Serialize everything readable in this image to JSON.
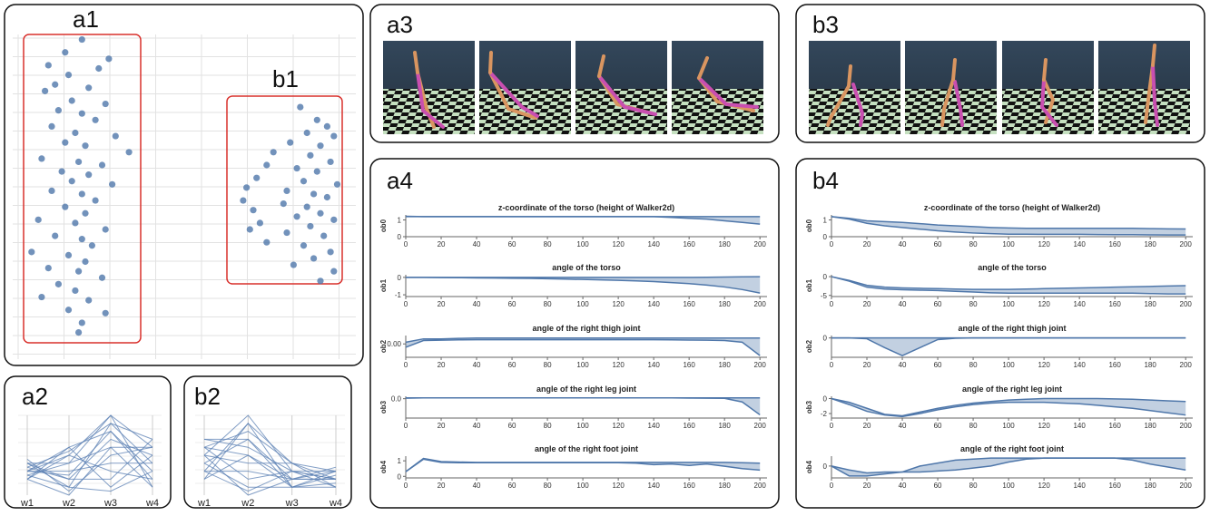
{
  "panel_labels": {
    "a1": "a1",
    "b1": "b1",
    "a2": "a2",
    "b2": "b2",
    "a3": "a3",
    "b3": "b3",
    "a4": "a4",
    "b4": "b4"
  },
  "chart_data": [
    {
      "type": "scatter",
      "color": "#4f77aa",
      "xlim": [
        0,
        100
      ],
      "ylim": [
        0,
        100
      ],
      "x": [
        19,
        14,
        27,
        9,
        24,
        15,
        11,
        21,
        8,
        16,
        26,
        12,
        19,
        23,
        10,
        17,
        29,
        14,
        20,
        33,
        7,
        18,
        25,
        13,
        21,
        16,
        28,
        10,
        19,
        23,
        14,
        20,
        6,
        17,
        26,
        11,
        19,
        22,
        4,
        15,
        20,
        9,
        18,
        25,
        12,
        17,
        7,
        21,
        15,
        26,
        19,
        18,
        84,
        89,
        92,
        86,
        94,
        81,
        90,
        76,
        87,
        93,
        74,
        83,
        89,
        71,
        85,
        95,
        68,
        80,
        88,
        92,
        67,
        79,
        86,
        70,
        90,
        83,
        94,
        72,
        87,
        69,
        80,
        91,
        74,
        85,
        93,
        88,
        82,
        94,
        90
      ],
      "y": [
        99,
        95,
        93,
        91,
        90,
        88,
        85,
        84,
        83,
        80,
        79,
        77,
        76,
        74,
        72,
        70,
        69,
        67,
        66,
        64,
        62,
        61,
        60,
        58,
        57,
        55,
        54,
        52,
        51,
        49,
        47,
        45,
        43,
        42,
        40,
        38,
        37,
        35,
        33,
        32,
        30,
        28,
        27,
        25,
        23,
        21,
        19,
        18,
        15,
        14,
        11,
        8,
        78,
        74,
        72,
        70,
        69,
        67,
        66,
        64,
        63,
        61,
        60,
        59,
        58,
        56,
        55,
        54,
        53,
        52,
        51,
        50,
        49,
        48,
        47,
        46,
        45,
        44,
        43,
        42,
        41,
        40,
        39,
        38,
        36,
        35,
        33,
        31,
        29,
        27,
        24
      ]
    },
    {
      "type": "parallel",
      "color": "#5a7fb3",
      "axes": [
        "w1",
        "w2",
        "w3",
        "w4"
      ],
      "ylim": [
        0,
        10
      ],
      "lines": [
        [
          3,
          5,
          10,
          6
        ],
        [
          4,
          1,
          9,
          7
        ],
        [
          2,
          6,
          8,
          3
        ],
        [
          3.5,
          2,
          7,
          5
        ],
        [
          2.5,
          4,
          6,
          1
        ],
        [
          4.5,
          0.5,
          5,
          6
        ],
        [
          3,
          3,
          4,
          4
        ],
        [
          2,
          5,
          3,
          2
        ],
        [
          4,
          2,
          2,
          7
        ],
        [
          3,
          6,
          1,
          5
        ],
        [
          2.5,
          1,
          0.5,
          3
        ],
        [
          4,
          4,
          10,
          1
        ],
        [
          3.5,
          5.5,
          9,
          4
        ],
        [
          2,
          0,
          6,
          6
        ],
        [
          3,
          2.5,
          8,
          2
        ]
      ]
    },
    {
      "type": "parallel",
      "color": "#5a7fb3",
      "axes": [
        "w1",
        "w2",
        "w3",
        "w4"
      ],
      "ylim": [
        0,
        10
      ],
      "lines": [
        [
          5,
          10,
          3,
          2
        ],
        [
          3,
          9,
          1,
          3
        ],
        [
          6,
          8,
          4,
          1
        ],
        [
          4,
          7,
          2,
          3.5
        ],
        [
          7,
          6,
          3,
          2
        ],
        [
          2,
          5,
          1,
          1.5
        ],
        [
          5,
          4,
          4,
          3
        ],
        [
          3,
          3,
          2,
          2
        ],
        [
          6,
          2,
          3,
          1
        ],
        [
          4,
          1,
          1,
          2.5
        ],
        [
          5,
          0,
          2,
          3
        ],
        [
          2,
          9,
          4,
          2
        ],
        [
          7,
          7,
          1,
          1
        ],
        [
          3,
          0.5,
          3,
          3
        ],
        [
          6,
          5,
          2,
          2
        ]
      ]
    },
    {
      "type": "band",
      "title": "z-coordinate of the torso (height of Walker2d)",
      "ylabel": "ob0",
      "color": "#4f77aa",
      "x": [
        0,
        10,
        20,
        30,
        40,
        50,
        60,
        70,
        80,
        90,
        100,
        110,
        120,
        130,
        140,
        150,
        160,
        170,
        180,
        190,
        200
      ],
      "xlim": [
        0,
        204
      ],
      "xticks": [
        0,
        20,
        40,
        60,
        80,
        100,
        120,
        140,
        160,
        180,
        200
      ],
      "ylim": [
        0,
        1.3
      ],
      "yticks": [
        0,
        1
      ],
      "upper": [
        1.22,
        1.2,
        1.2,
        1.2,
        1.2,
        1.2,
        1.2,
        1.2,
        1.2,
        1.2,
        1.2,
        1.2,
        1.2,
        1.2,
        1.2,
        1.2,
        1.2,
        1.2,
        1.2,
        1.2,
        1.2
      ],
      "lower": [
        1.2,
        1.2,
        1.2,
        1.2,
        1.2,
        1.2,
        1.2,
        1.2,
        1.2,
        1.2,
        1.2,
        1.2,
        1.2,
        1.2,
        1.2,
        1.15,
        1.1,
        1.05,
        0.95,
        0.85,
        0.75
      ]
    },
    {
      "type": "band",
      "title": "angle of the torso",
      "ylabel": "ob1",
      "color": "#4f77aa",
      "x": [
        0,
        10,
        20,
        30,
        40,
        50,
        60,
        70,
        80,
        90,
        100,
        110,
        120,
        130,
        140,
        150,
        160,
        170,
        180,
        190,
        200
      ],
      "xlim": [
        0,
        204
      ],
      "xticks": [
        0,
        20,
        40,
        60,
        80,
        100,
        120,
        140,
        160,
        180,
        200
      ],
      "ylim": [
        -1.1,
        0.15
      ],
      "yticks": [
        -1,
        0
      ],
      "upper": [
        0,
        0,
        0,
        0,
        0,
        0,
        0,
        0,
        0,
        0,
        0,
        0,
        0,
        0,
        0,
        0,
        0,
        0.01,
        0.02,
        0.03,
        0.04
      ],
      "lower": [
        0,
        0,
        -0.01,
        -0.02,
        -0.03,
        -0.04,
        -0.05,
        -0.06,
        -0.08,
        -0.1,
        -0.12,
        -0.14,
        -0.17,
        -0.2,
        -0.24,
        -0.3,
        -0.36,
        -0.44,
        -0.55,
        -0.7,
        -0.9
      ]
    },
    {
      "type": "band",
      "title": "angle of the right thigh joint",
      "ylabel": "ob2",
      "color": "#4f77aa",
      "x": [
        0,
        10,
        20,
        30,
        40,
        50,
        60,
        70,
        80,
        90,
        100,
        110,
        120,
        130,
        140,
        150,
        160,
        170,
        180,
        190,
        200
      ],
      "xlim": [
        0,
        204
      ],
      "xticks": [
        0,
        20,
        40,
        60,
        80,
        100,
        120,
        140,
        160,
        180,
        200
      ],
      "ylim": [
        -0.08,
        0.05
      ],
      "yticks": [
        {
          "value": 0,
          "label": "0.00"
        }
      ],
      "upper": [
        0.01,
        0.03,
        0.03,
        0.033,
        0.035,
        0.035,
        0.035,
        0.035,
        0.035,
        0.035,
        0.035,
        0.035,
        0.035,
        0.035,
        0.035,
        0.035,
        0.035,
        0.035,
        0.035,
        0.035,
        0.035
      ],
      "lower": [
        -0.02,
        0.02,
        0.022,
        0.024,
        0.025,
        0.025,
        0.025,
        0.025,
        0.025,
        0.025,
        0.025,
        0.025,
        0.025,
        0.025,
        0.025,
        0.024,
        0.023,
        0.022,
        0.02,
        0.01,
        -0.07
      ]
    },
    {
      "type": "band",
      "title": "angle of the right leg joint",
      "ylabel": "ob3",
      "color": "#4f77aa",
      "x": [
        0,
        10,
        20,
        30,
        40,
        50,
        60,
        70,
        80,
        90,
        100,
        110,
        120,
        130,
        140,
        150,
        160,
        170,
        180,
        190,
        200
      ],
      "xlim": [
        0,
        204
      ],
      "xticks": [
        0,
        20,
        40,
        60,
        80,
        100,
        120,
        140,
        160,
        180,
        200
      ],
      "ylim": [
        -1.2,
        0.15
      ],
      "yticks": [
        {
          "value": 0,
          "label": "0.0"
        }
      ],
      "upper": [
        0.05,
        0.05,
        0.05,
        0.05,
        0.05,
        0.05,
        0.05,
        0.05,
        0.05,
        0.05,
        0.05,
        0.05,
        0.05,
        0.05,
        0.05,
        0.05,
        0.05,
        0.05,
        0.05,
        0.05,
        0.05
      ],
      "lower": [
        0.03,
        0.05,
        0.05,
        0.05,
        0.05,
        0.05,
        0.05,
        0.05,
        0.05,
        0.05,
        0.05,
        0.05,
        0.05,
        0.05,
        0.05,
        0.05,
        0.04,
        0.03,
        0.02,
        -0.2,
        -1.0
      ]
    },
    {
      "type": "band",
      "title": "angle of the right foot joint",
      "ylabel": "ob4",
      "color": "#4f77aa",
      "x": [
        0,
        10,
        20,
        30,
        40,
        50,
        60,
        70,
        80,
        90,
        100,
        110,
        120,
        130,
        140,
        150,
        160,
        170,
        180,
        190,
        200
      ],
      "xlim": [
        0,
        204
      ],
      "xticks": [
        0,
        20,
        40,
        60,
        80,
        100,
        120,
        140,
        160,
        180,
        200
      ],
      "ylim": [
        -0.1,
        1.3
      ],
      "yticks": [
        0,
        1
      ],
      "upper": [
        0.3,
        1.15,
        0.95,
        0.92,
        0.9,
        0.9,
        0.9,
        0.9,
        0.9,
        0.9,
        0.9,
        0.9,
        0.9,
        0.9,
        0.9,
        0.9,
        0.9,
        0.9,
        0.9,
        0.88,
        0.85
      ],
      "lower": [
        0.3,
        1.1,
        0.9,
        0.88,
        0.88,
        0.88,
        0.88,
        0.88,
        0.88,
        0.88,
        0.88,
        0.88,
        0.88,
        0.85,
        0.75,
        0.8,
        0.7,
        0.8,
        0.65,
        0.5,
        0.4
      ]
    },
    {
      "type": "band",
      "title": "z-coordinate of the torso (height of Walker2d)",
      "ylabel": "ob0",
      "color": "#4f77aa",
      "x": [
        0,
        10,
        20,
        30,
        40,
        50,
        60,
        70,
        80,
        90,
        100,
        110,
        120,
        130,
        140,
        150,
        160,
        170,
        180,
        190,
        200
      ],
      "xlim": [
        0,
        204
      ],
      "xticks": [
        0,
        20,
        40,
        60,
        80,
        100,
        120,
        140,
        160,
        180,
        200
      ],
      "ylim": [
        0,
        1.3
      ],
      "yticks": [
        0,
        1
      ],
      "upper": [
        1.2,
        1.1,
        0.95,
        0.9,
        0.85,
        0.78,
        0.7,
        0.65,
        0.6,
        0.55,
        0.52,
        0.5,
        0.5,
        0.5,
        0.5,
        0.5,
        0.5,
        0.5,
        0.48,
        0.47,
        0.46
      ],
      "lower": [
        1.2,
        1.05,
        0.8,
        0.65,
        0.55,
        0.45,
        0.35,
        0.28,
        0.22,
        0.18,
        0.15,
        0.15,
        0.14,
        0.14,
        0.14,
        0.13,
        0.12,
        0.12,
        0.11,
        0.1,
        0.1
      ]
    },
    {
      "type": "band",
      "title": "angle of the torso",
      "ylabel": "ob1",
      "color": "#4f77aa",
      "x": [
        0,
        10,
        20,
        30,
        40,
        50,
        60,
        70,
        80,
        90,
        100,
        110,
        120,
        130,
        140,
        150,
        160,
        170,
        180,
        190,
        200
      ],
      "xlim": [
        0,
        204
      ],
      "xticks": [
        0,
        20,
        40,
        60,
        80,
        100,
        120,
        140,
        160,
        180,
        200
      ],
      "ylim": [
        -5.3,
        0.5
      ],
      "yticks": [
        -5,
        0
      ],
      "upper": [
        0,
        -1,
        -2.3,
        -2.8,
        -3,
        -3.1,
        -3.2,
        -3.3,
        -3.4,
        -3.4,
        -3.4,
        -3.3,
        -3.2,
        -3.1,
        -3,
        -2.9,
        -2.8,
        -2.7,
        -2.6,
        -2.5,
        -2.4
      ],
      "lower": [
        0,
        -1.2,
        -2.8,
        -3.3,
        -3.5,
        -3.6,
        -3.7,
        -3.9,
        -4.1,
        -4.3,
        -4.4,
        -4.4,
        -4.4,
        -4.4,
        -4.4,
        -4.4,
        -4.4,
        -4.4,
        -4.5,
        -4.6,
        -4.6
      ]
    },
    {
      "type": "band",
      "title": "angle of the right thigh joint",
      "ylabel": "ob2",
      "color": "#4f77aa",
      "x": [
        0,
        10,
        20,
        30,
        40,
        50,
        60,
        70,
        80,
        90,
        100,
        110,
        120,
        130,
        140,
        150,
        160,
        170,
        180,
        190,
        200
      ],
      "xlim": [
        0,
        204
      ],
      "xticks": [
        0,
        20,
        40,
        60,
        80,
        100,
        120,
        140,
        160,
        180,
        200
      ],
      "ylim": [
        -1.2,
        0.15
      ],
      "yticks": [
        0
      ],
      "upper": [
        0,
        0,
        0,
        0,
        0,
        0,
        0,
        0,
        0,
        0,
        0,
        0,
        0,
        0,
        0,
        0,
        0,
        0,
        0,
        0,
        0
      ],
      "lower": [
        0,
        0,
        -0.05,
        -0.6,
        -1.1,
        -0.6,
        -0.1,
        -0.02,
        0,
        0,
        0,
        0,
        0,
        0,
        0,
        0,
        0,
        0,
        0,
        0,
        0
      ]
    },
    {
      "type": "band",
      "title": "angle of the right leg joint",
      "ylabel": "ob3",
      "color": "#4f77aa",
      "x": [
        0,
        10,
        20,
        30,
        40,
        50,
        60,
        70,
        80,
        90,
        100,
        110,
        120,
        130,
        140,
        150,
        160,
        170,
        180,
        190,
        200
      ],
      "xlim": [
        0,
        204
      ],
      "xticks": [
        0,
        20,
        40,
        60,
        80,
        100,
        120,
        140,
        160,
        180,
        200
      ],
      "ylim": [
        -2.6,
        0.3
      ],
      "yticks": [
        0,
        -2
      ],
      "upper": [
        0,
        -0.5,
        -1.3,
        -2.1,
        -2.3,
        -1.8,
        -1.3,
        -0.9,
        -0.6,
        -0.4,
        -0.2,
        -0.1,
        0,
        0,
        0,
        0,
        -0.05,
        -0.1,
        -0.2,
        -0.3,
        -0.4
      ],
      "lower": [
        0,
        -0.8,
        -1.7,
        -2.2,
        -2.4,
        -2,
        -1.5,
        -1.1,
        -0.8,
        -0.6,
        -0.5,
        -0.5,
        -0.5,
        -0.6,
        -0.7,
        -0.9,
        -1.1,
        -1.3,
        -1.6,
        -1.9,
        -2.2
      ]
    },
    {
      "type": "band",
      "title": "angle of the right foot joint",
      "ylabel": "ob4",
      "color": "#4f77aa",
      "x": [
        0,
        10,
        20,
        30,
        40,
        50,
        60,
        70,
        80,
        90,
        100,
        110,
        120,
        130,
        140,
        150,
        160,
        170,
        180,
        190,
        200
      ],
      "xlim": [
        0,
        204
      ],
      "xticks": [
        0,
        20,
        40,
        60,
        80,
        100,
        120,
        140,
        160,
        180,
        200
      ],
      "ylim": [
        -0.6,
        0.5
      ],
      "yticks": [
        0
      ],
      "upper": [
        0,
        -0.2,
        -0.35,
        -0.3,
        -0.3,
        0,
        0.15,
        0.3,
        0.35,
        0.4,
        0.4,
        0.4,
        0.4,
        0.4,
        0.4,
        0.4,
        0.4,
        0.4,
        0.4,
        0.4,
        0.4
      ],
      "lower": [
        0,
        -0.5,
        -0.5,
        -0.4,
        -0.3,
        -0.3,
        -0.25,
        -0.2,
        -0.1,
        0,
        0.2,
        0.35,
        0.4,
        0.4,
        0.4,
        0.4,
        0.4,
        0.3,
        0.1,
        -0.05,
        -0.2
      ]
    }
  ]
}
